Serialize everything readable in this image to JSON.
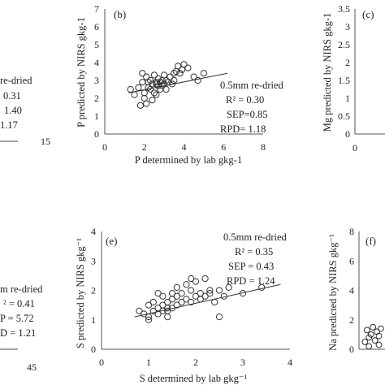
{
  "chart_data": [
    {
      "panel_label": "",
      "type": "scatter",
      "stats_lines": [
        "re-dried",
        "0.31",
        "1.40",
        "1.17"
      ],
      "xtick_labels": [
        "15"
      ],
      "series": [
        {
          "x": [],
          "y": []
        }
      ]
    },
    {
      "panel_label": "(b)",
      "type": "scatter",
      "xlabel": "P determined by lab gkg-1",
      "ylabel": "P predicted by NIRS gkg-1",
      "xlim": [
        0,
        8
      ],
      "ylim": [
        0,
        7
      ],
      "xticks": [
        0,
        2,
        4,
        6,
        8
      ],
      "yticks": [
        0,
        1,
        2,
        3,
        4,
        5,
        6,
        7
      ],
      "stats_lines": [
        "0.5mm re-dried",
        "R² = 0.30",
        "SEP=0.85",
        "RPD= 1.18"
      ],
      "trendline": {
        "x": [
          1.2,
          6.2
        ],
        "y": [
          2.3,
          3.4
        ]
      },
      "series": [
        {
          "x": [
            1.3,
            1.5,
            1.7,
            1.8,
            1.9,
            2.0,
            2.0,
            2.1,
            2.2,
            2.2,
            2.3,
            2.3,
            2.4,
            2.5,
            2.5,
            2.6,
            2.6,
            2.7,
            2.7,
            2.8,
            2.8,
            2.9,
            2.9,
            3.0,
            3.0,
            3.1,
            3.1,
            3.2,
            3.3,
            3.4,
            3.5,
            3.6,
            3.7,
            3.8,
            3.9,
            4.0,
            4.2,
            4.5,
            4.7,
            5.0,
            2.4,
            2.1,
            1.9,
            3.5,
            2.6
          ],
          "y": [
            2.5,
            2.2,
            2.6,
            1.6,
            2.9,
            2.3,
            2.0,
            3.2,
            2.6,
            2.9,
            2.5,
            3.0,
            2.8,
            2.3,
            3.3,
            2.8,
            2.9,
            2.7,
            3.1,
            2.5,
            2.9,
            3.0,
            2.7,
            2.8,
            3.3,
            2.5,
            3.0,
            2.9,
            3.2,
            2.8,
            3.4,
            3.5,
            3.8,
            3.4,
            3.6,
            3.9,
            3.7,
            3.2,
            3.0,
            3.4,
            1.9,
            1.7,
            3.4,
            3.0,
            2.2
          ]
        }
      ]
    },
    {
      "panel_label": "(c)",
      "type": "scatter",
      "ylabel": "Mg predicted by NIRS gkg-1",
      "ylim": [
        0,
        3.5
      ],
      "yticks": [
        0,
        0.5,
        1,
        1.5,
        2,
        2.5,
        3,
        3.5
      ],
      "xtick_labels": [
        "0"
      ],
      "series": [
        {
          "x": [],
          "y": []
        }
      ]
    },
    {
      "panel_label": "",
      "type": "scatter",
      "stats_lines": [
        "m re-dried",
        "² = 0.41",
        "P = 5.72",
        "D = 1.21"
      ],
      "xtick_labels": [
        "45"
      ],
      "series": [
        {
          "x": [],
          "y": []
        }
      ]
    },
    {
      "panel_label": "(e)",
      "type": "scatter",
      "xlabel": "S determined by lab gkg⁻¹",
      "ylabel": "S predicted by NIRS gkg⁻¹",
      "xlim": [
        0,
        4
      ],
      "ylim": [
        0,
        4
      ],
      "xticks": [
        0,
        1,
        2,
        3,
        4
      ],
      "yticks": [
        0,
        1,
        2,
        3,
        4
      ],
      "stats_lines": [
        "0.5mm re-dried",
        "R² = 0.35",
        "SEP = 0.43",
        "RPD = 1.24"
      ],
      "trendline": {
        "x": [
          0.7,
          3.8
        ],
        "y": [
          1.1,
          2.2
        ]
      },
      "series": [
        {
          "x": [
            0.8,
            0.9,
            1.0,
            1.0,
            1.1,
            1.1,
            1.2,
            1.2,
            1.3,
            1.3,
            1.3,
            1.4,
            1.4,
            1.4,
            1.5,
            1.5,
            1.5,
            1.6,
            1.6,
            1.7,
            1.7,
            1.8,
            1.8,
            1.9,
            1.9,
            2.0,
            2.0,
            2.1,
            2.1,
            2.2,
            2.2,
            2.3,
            2.4,
            2.5,
            2.6,
            2.7,
            3.0,
            3.4,
            1.0,
            1.2,
            2.5,
            1.6,
            1.9,
            2.3,
            1.4
          ],
          "y": [
            1.3,
            1.2,
            1.1,
            1.5,
            1.3,
            1.6,
            1.2,
            1.4,
            1.3,
            1.5,
            1.8,
            1.4,
            1.6,
            1.3,
            1.4,
            1.7,
            1.9,
            1.5,
            1.8,
            1.6,
            1.9,
            1.7,
            2.2,
            1.6,
            2.0,
            1.8,
            2.3,
            1.7,
            1.9,
            1.8,
            2.4,
            1.9,
            1.6,
            2.0,
            1.8,
            2.1,
            1.9,
            2.1,
            1.0,
            1.9,
            1.1,
            2.1,
            2.4,
            2.0,
            1.1
          ]
        }
      ]
    },
    {
      "panel_label": "(f)",
      "type": "scatter",
      "ylabel": "Na predicted by NIRS gkg⁻¹",
      "ylim": [
        0,
        8
      ],
      "yticks": [
        0,
        2,
        4,
        6,
        8
      ],
      "series": [
        {
          "x": [
            0.3,
            0.5,
            0.6,
            0.8,
            0.9,
            1.0,
            1.1,
            1.2,
            1.3,
            1.4,
            1.5,
            1.6,
            1.7,
            1.8,
            2.0,
            2.2,
            0.4,
            0.7,
            1.0,
            1.3,
            1.6,
            1.9,
            2.1,
            0.5
          ],
          "y": [
            0.5,
            0.8,
            1.0,
            0.6,
            1.2,
            0.9,
            1.4,
            1.0,
            1.6,
            1.1,
            1.8,
            2.0,
            1.3,
            2.2,
            1.7,
            2.4,
            1.3,
            1.5,
            0.3,
            0.4,
            0.6,
            1.0,
            0.8,
            0.2
          ]
        }
      ]
    }
  ]
}
